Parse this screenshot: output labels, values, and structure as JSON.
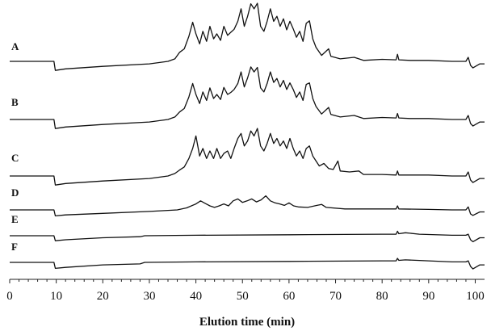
{
  "chart_data": {
    "type": "line",
    "xlabel": "Elution time (min)",
    "xlim": [
      0,
      102
    ],
    "xticks": [
      0,
      10,
      20,
      30,
      40,
      50,
      60,
      70,
      80,
      90,
      100
    ],
    "grid": false,
    "series": [
      {
        "name": "A",
        "points": [
          [
            0,
            0
          ],
          [
            9.5,
            0
          ],
          [
            9.8,
            -1.8
          ],
          [
            12,
            -1.5
          ],
          [
            20,
            -1
          ],
          [
            30,
            -0.5
          ],
          [
            34,
            0
          ],
          [
            35.5,
            0.5
          ],
          [
            36.5,
            1.8
          ],
          [
            37.5,
            2.5
          ],
          [
            38.5,
            5
          ],
          [
            39.3,
            7.8
          ],
          [
            40,
            5.5
          ],
          [
            40.8,
            3.5
          ],
          [
            41.5,
            6
          ],
          [
            42.3,
            4
          ],
          [
            43,
            7
          ],
          [
            43.8,
            4.5
          ],
          [
            44.5,
            5.5
          ],
          [
            45.3,
            4.2
          ],
          [
            46,
            7
          ],
          [
            46.8,
            5.2
          ],
          [
            47.5,
            5.8
          ],
          [
            48.2,
            6.4
          ],
          [
            49,
            8
          ],
          [
            49.7,
            10.5
          ],
          [
            50.4,
            7
          ],
          [
            51.1,
            9
          ],
          [
            51.8,
            11.5
          ],
          [
            52.5,
            10.5
          ],
          [
            53.2,
            11.6
          ],
          [
            53.9,
            7
          ],
          [
            54.6,
            6
          ],
          [
            55.3,
            8
          ],
          [
            56,
            10.5
          ],
          [
            56.7,
            8
          ],
          [
            57.4,
            9
          ],
          [
            58.1,
            7
          ],
          [
            58.8,
            8.5
          ],
          [
            59.5,
            6.3
          ],
          [
            60.2,
            8
          ],
          [
            60.9,
            6.5
          ],
          [
            61.6,
            4.8
          ],
          [
            62.3,
            6
          ],
          [
            63,
            4
          ],
          [
            63.7,
            7.6
          ],
          [
            64.4,
            8.1
          ],
          [
            65.1,
            4.5
          ],
          [
            65.8,
            2.8
          ],
          [
            67,
            1.2
          ],
          [
            68.5,
            2.5
          ],
          [
            69,
            1
          ],
          [
            71,
            0.5
          ],
          [
            74,
            0.8
          ],
          [
            76,
            0.2
          ],
          [
            80,
            0.4
          ],
          [
            83,
            0.3
          ],
          [
            83.3,
            1.4
          ],
          [
            83.6,
            0.3
          ],
          [
            86,
            0.2
          ],
          [
            90,
            0.2
          ],
          [
            95,
            0
          ],
          [
            98,
            0
          ],
          [
            98.5,
            0.8
          ],
          [
            99,
            -0.8
          ],
          [
            99.5,
            -1.3
          ],
          [
            101,
            -0.5
          ],
          [
            102,
            -0.5
          ]
        ]
      },
      {
        "name": "B",
        "points": [
          [
            0,
            0
          ],
          [
            9.5,
            0
          ],
          [
            9.8,
            -1.8
          ],
          [
            12,
            -1.5
          ],
          [
            20,
            -1
          ],
          [
            30,
            -0.5
          ],
          [
            34,
            0
          ],
          [
            35.5,
            0.5
          ],
          [
            36.5,
            1.5
          ],
          [
            37.5,
            2.2
          ],
          [
            38.5,
            4.5
          ],
          [
            39.3,
            7.2
          ],
          [
            40,
            5
          ],
          [
            40.8,
            3.2
          ],
          [
            41.5,
            5.5
          ],
          [
            42.3,
            3.8
          ],
          [
            43,
            6.3
          ],
          [
            43.8,
            4.2
          ],
          [
            44.5,
            5
          ],
          [
            45.3,
            4
          ],
          [
            46,
            6.4
          ],
          [
            46.8,
            5
          ],
          [
            47.5,
            5.4
          ],
          [
            48.2,
            6
          ],
          [
            49,
            7.2
          ],
          [
            49.7,
            9.5
          ],
          [
            50.4,
            6.5
          ],
          [
            51.1,
            8.3
          ],
          [
            51.8,
            10.5
          ],
          [
            52.5,
            9.5
          ],
          [
            53.2,
            10.4
          ],
          [
            53.9,
            6.3
          ],
          [
            54.6,
            5.5
          ],
          [
            55.3,
            7.2
          ],
          [
            56,
            9.5
          ],
          [
            56.7,
            7.4
          ],
          [
            57.4,
            8.2
          ],
          [
            58.1,
            6.5
          ],
          [
            58.8,
            7.8
          ],
          [
            59.5,
            6
          ],
          [
            60.2,
            7.3
          ],
          [
            60.9,
            6
          ],
          [
            61.6,
            4.4
          ],
          [
            62.3,
            5.5
          ],
          [
            63,
            3.8
          ],
          [
            63.7,
            7
          ],
          [
            64.4,
            7.3
          ],
          [
            65.1,
            4.2
          ],
          [
            65.8,
            2.6
          ],
          [
            67,
            1.1
          ],
          [
            68.5,
            2.4
          ],
          [
            69,
            1
          ],
          [
            71,
            0.5
          ],
          [
            74,
            0.8
          ],
          [
            76,
            0.2
          ],
          [
            80,
            0.4
          ],
          [
            83,
            0.3
          ],
          [
            83.3,
            1.2
          ],
          [
            83.6,
            0.3
          ],
          [
            86,
            0.2
          ],
          [
            90,
            0.2
          ],
          [
            95,
            0
          ],
          [
            98,
            0
          ],
          [
            98.5,
            0.8
          ],
          [
            99,
            -0.8
          ],
          [
            99.5,
            -1.3
          ],
          [
            101,
            -0.5
          ],
          [
            102,
            -0.5
          ]
        ]
      },
      {
        "name": "C",
        "points": [
          [
            0,
            0
          ],
          [
            9.5,
            0
          ],
          [
            9.8,
            -1.8
          ],
          [
            12,
            -1.5
          ],
          [
            20,
            -1
          ],
          [
            30,
            -0.5
          ],
          [
            34,
            0
          ],
          [
            35.5,
            0.5
          ],
          [
            36.5,
            1.2
          ],
          [
            37.5,
            1.8
          ],
          [
            38.5,
            3.5
          ],
          [
            39.3,
            5.5
          ],
          [
            40,
            8
          ],
          [
            40.8,
            4
          ],
          [
            41.5,
            5.5
          ],
          [
            42.3,
            3.5
          ],
          [
            43,
            5
          ],
          [
            43.8,
            3.5
          ],
          [
            44.5,
            5.5
          ],
          [
            45.3,
            3.5
          ],
          [
            46,
            4.5
          ],
          [
            46.8,
            5
          ],
          [
            47.5,
            3.5
          ],
          [
            48.2,
            5.5
          ],
          [
            49,
            7.5
          ],
          [
            49.7,
            8.5
          ],
          [
            50.4,
            6
          ],
          [
            51.1,
            7
          ],
          [
            51.8,
            9
          ],
          [
            52.5,
            8
          ],
          [
            53.2,
            9.5
          ],
          [
            53.9,
            6
          ],
          [
            54.6,
            5
          ],
          [
            55.3,
            6.5
          ],
          [
            56,
            8.5
          ],
          [
            56.7,
            6.5
          ],
          [
            57.4,
            7.5
          ],
          [
            58.1,
            6
          ],
          [
            58.8,
            7
          ],
          [
            59.5,
            5.5
          ],
          [
            60.2,
            7.5
          ],
          [
            60.9,
            5.5
          ],
          [
            61.6,
            4
          ],
          [
            62.3,
            5
          ],
          [
            63,
            3.5
          ],
          [
            63.7,
            5.5
          ],
          [
            64.4,
            6
          ],
          [
            65.1,
            4
          ],
          [
            65.8,
            3
          ],
          [
            66.5,
            2
          ],
          [
            67.5,
            2.5
          ],
          [
            68.5,
            1.5
          ],
          [
            69.5,
            1.3
          ],
          [
            70.5,
            3
          ],
          [
            71,
            1
          ],
          [
            73,
            0.8
          ],
          [
            75,
            1
          ],
          [
            76,
            0.3
          ],
          [
            80,
            0.3
          ],
          [
            83,
            0.2
          ],
          [
            83.3,
            1
          ],
          [
            83.6,
            0.2
          ],
          [
            86,
            0.2
          ],
          [
            90,
            0.2
          ],
          [
            95,
            0
          ],
          [
            98,
            0
          ],
          [
            98.5,
            0.8
          ],
          [
            99,
            -0.8
          ],
          [
            99.5,
            -1.3
          ],
          [
            101,
            -0.5
          ],
          [
            102,
            -0.5
          ]
        ]
      },
      {
        "name": "D",
        "points": [
          [
            0,
            0
          ],
          [
            9.5,
            0
          ],
          [
            9.8,
            -1.2
          ],
          [
            12,
            -1
          ],
          [
            20,
            -0.7
          ],
          [
            30,
            -0.3
          ],
          [
            36,
            0
          ],
          [
            38,
            0.4
          ],
          [
            40,
            1.2
          ],
          [
            41,
            1.8
          ],
          [
            42,
            1.3
          ],
          [
            43,
            0.8
          ],
          [
            44,
            0.5
          ],
          [
            45,
            0.8
          ],
          [
            46,
            1.2
          ],
          [
            47,
            0.8
          ],
          [
            48,
            1.8
          ],
          [
            49,
            2.2
          ],
          [
            50,
            1.5
          ],
          [
            51,
            1.8
          ],
          [
            52,
            2.2
          ],
          [
            53,
            1.6
          ],
          [
            54,
            2
          ],
          [
            55,
            2.8
          ],
          [
            56,
            1.8
          ],
          [
            57,
            1.4
          ],
          [
            58,
            1.2
          ],
          [
            59,
            0.9
          ],
          [
            60,
            1.4
          ],
          [
            61,
            0.8
          ],
          [
            62,
            0.6
          ],
          [
            64,
            0.5
          ],
          [
            66,
            0.9
          ],
          [
            67,
            1.1
          ],
          [
            68,
            0.5
          ],
          [
            72,
            0.2
          ],
          [
            80,
            0.2
          ],
          [
            83,
            0.2
          ],
          [
            83.3,
            0.8
          ],
          [
            83.6,
            0.2
          ],
          [
            90,
            0.1
          ],
          [
            95,
            0
          ],
          [
            98,
            0
          ],
          [
            98.5,
            0.6
          ],
          [
            99,
            -0.8
          ],
          [
            99.5,
            -1.1
          ],
          [
            101,
            -0.4
          ],
          [
            102,
            -0.4
          ]
        ]
      },
      {
        "name": "E",
        "points": [
          [
            0,
            0
          ],
          [
            9.5,
            0
          ],
          [
            9.8,
            -1
          ],
          [
            12,
            -0.8
          ],
          [
            20,
            -0.4
          ],
          [
            28,
            -0.2
          ],
          [
            29,
            0
          ],
          [
            40,
            0.1
          ],
          [
            60,
            0.2
          ],
          [
            80,
            0.3
          ],
          [
            83,
            0.3
          ],
          [
            83.3,
            0.9
          ],
          [
            83.6,
            0.4
          ],
          [
            85,
            0.6
          ],
          [
            88,
            0.3
          ],
          [
            95,
            0.1
          ],
          [
            98,
            0.1
          ],
          [
            98.5,
            0.3
          ],
          [
            99,
            -0.8
          ],
          [
            99.5,
            -1.2
          ],
          [
            101,
            -0.4
          ],
          [
            102,
            -0.4
          ]
        ]
      },
      {
        "name": "F",
        "points": [
          [
            0,
            0
          ],
          [
            9.5,
            0
          ],
          [
            9.8,
            -1.2
          ],
          [
            12,
            -1
          ],
          [
            20,
            -0.5
          ],
          [
            28,
            -0.3
          ],
          [
            29,
            0
          ],
          [
            40,
            0.1
          ],
          [
            60,
            0.2
          ],
          [
            80,
            0.3
          ],
          [
            83,
            0.3
          ],
          [
            83.3,
            0.8
          ],
          [
            83.6,
            0.4
          ],
          [
            85,
            0.5
          ],
          [
            90,
            0.3
          ],
          [
            95,
            0.1
          ],
          [
            98,
            0.1
          ],
          [
            98.5,
            0.3
          ],
          [
            99,
            -0.8
          ],
          [
            99.5,
            -1.3
          ],
          [
            101,
            -0.5
          ],
          [
            102,
            -0.5
          ]
        ]
      }
    ]
  }
}
